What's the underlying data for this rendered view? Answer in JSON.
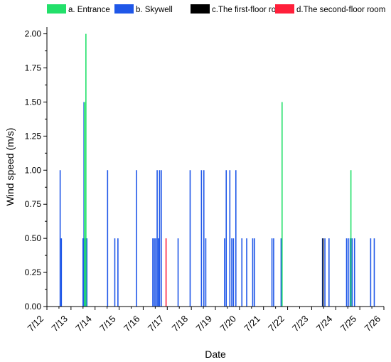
{
  "chart_data": {
    "type": "bar",
    "xlabel": "Date",
    "ylabel": "Wind speed (m/s)",
    "x_ticks": [
      "7/12",
      "7/13",
      "7/14",
      "7/15",
      "7/16",
      "7/17",
      "7/18",
      "7/19",
      "7/20",
      "7/21",
      "7/22",
      "7/23",
      "7/24",
      "7/25",
      "7/26"
    ],
    "y_ticks": [
      "0.00",
      "0.25",
      "0.50",
      "0.75",
      "1.00",
      "1.25",
      "1.50",
      "1.75",
      "2.00"
    ],
    "ylim": [
      0,
      2.05
    ],
    "legend_position": "top",
    "series": [
      {
        "name": "a. Entrance",
        "color": "#22e06a",
        "points": [
          [
            13.56,
            1.5
          ],
          [
            13.62,
            2.0
          ],
          [
            21.77,
            1.5
          ],
          [
            24.63,
            1.0
          ]
        ]
      },
      {
        "name": "b. Skywell",
        "color": "#1f57e8",
        "points": [
          [
            12.55,
            1.0
          ],
          [
            12.6,
            0.5
          ],
          [
            13.5,
            0.5
          ],
          [
            13.54,
            1.5
          ],
          [
            13.6,
            0.5
          ],
          [
            13.66,
            0.5
          ],
          [
            14.52,
            1.0
          ],
          [
            14.82,
            0.5
          ],
          [
            14.95,
            0.5
          ],
          [
            15.72,
            1.0
          ],
          [
            16.4,
            0.5
          ],
          [
            16.46,
            0.5
          ],
          [
            16.52,
            0.5
          ],
          [
            16.58,
            1.0
          ],
          [
            16.63,
            0.5
          ],
          [
            16.68,
            1.0
          ],
          [
            16.75,
            1.0
          ],
          [
            17.45,
            0.5
          ],
          [
            17.95,
            1.0
          ],
          [
            18.42,
            1.0
          ],
          [
            18.52,
            1.0
          ],
          [
            18.6,
            0.5
          ],
          [
            19.38,
            0.5
          ],
          [
            19.45,
            1.0
          ],
          [
            19.6,
            1.0
          ],
          [
            19.68,
            0.5
          ],
          [
            19.75,
            0.5
          ],
          [
            19.85,
            1.0
          ],
          [
            20.1,
            0.5
          ],
          [
            20.3,
            0.5
          ],
          [
            20.55,
            0.5
          ],
          [
            20.62,
            0.5
          ],
          [
            21.35,
            0.5
          ],
          [
            21.42,
            0.5
          ],
          [
            21.73,
            0.5
          ],
          [
            23.45,
            0.5
          ],
          [
            23.55,
            0.5
          ],
          [
            23.72,
            0.5
          ],
          [
            24.45,
            0.5
          ],
          [
            24.52,
            0.5
          ],
          [
            24.6,
            0.5
          ],
          [
            24.68,
            0.5
          ],
          [
            24.78,
            0.5
          ],
          [
            25.45,
            0.5
          ],
          [
            25.6,
            0.5
          ]
        ]
      },
      {
        "name": "c.The  first-floor room",
        "color": "#000000",
        "points": [
          [
            23.47,
            0.5
          ]
        ]
      },
      {
        "name": "d.The second-floor room",
        "color": "#ff1f3a",
        "points": [
          [
            16.95,
            0.5
          ]
        ]
      }
    ]
  }
}
